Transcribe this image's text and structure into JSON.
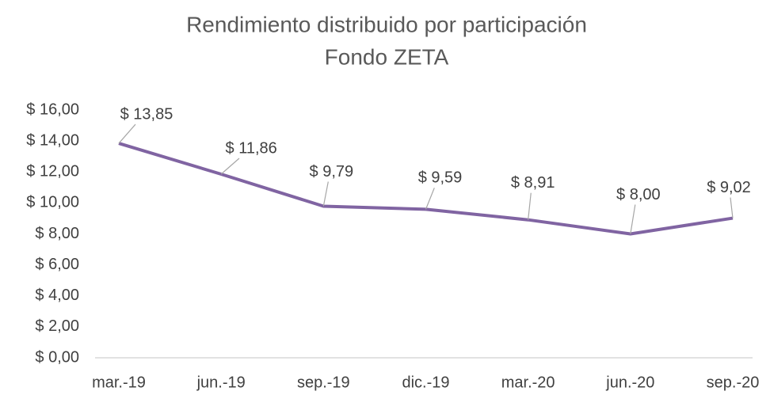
{
  "chart_data": {
    "type": "line",
    "title": "Rendimiento distribuido por participación",
    "subtitle": "Fondo ZETA",
    "categories": [
      "mar.-19",
      "jun.-19",
      "sep.-19",
      "dic.-19",
      "mar.-20",
      "jun.-20",
      "sep.-20"
    ],
    "series": [
      {
        "name": "Rendimiento distribuido por participación",
        "color": "#8064a2",
        "values": [
          13.85,
          11.86,
          9.79,
          9.59,
          8.91,
          8.0,
          9.02
        ],
        "value_labels": [
          "$ 13,85",
          "$ 11,86",
          "$ 9,79",
          "$ 9,59",
          "$ 8,91",
          "$ 8,00",
          "$ 9,02"
        ]
      }
    ],
    "ylim": [
      0,
      16
    ],
    "yticks": [
      {
        "value": 0,
        "label": "$ 0,00"
      },
      {
        "value": 2,
        "label": "$ 2,00"
      },
      {
        "value": 4,
        "label": "$ 4,00"
      },
      {
        "value": 6,
        "label": "$ 6,00"
      },
      {
        "value": 8,
        "label": "$ 8,00"
      },
      {
        "value": 10,
        "label": "$ 10,00"
      },
      {
        "value": 12,
        "label": "$ 12,00"
      },
      {
        "value": 14,
        "label": "$ 14,00"
      },
      {
        "value": 16,
        "label": "$ 16,00"
      }
    ],
    "grid": false
  }
}
